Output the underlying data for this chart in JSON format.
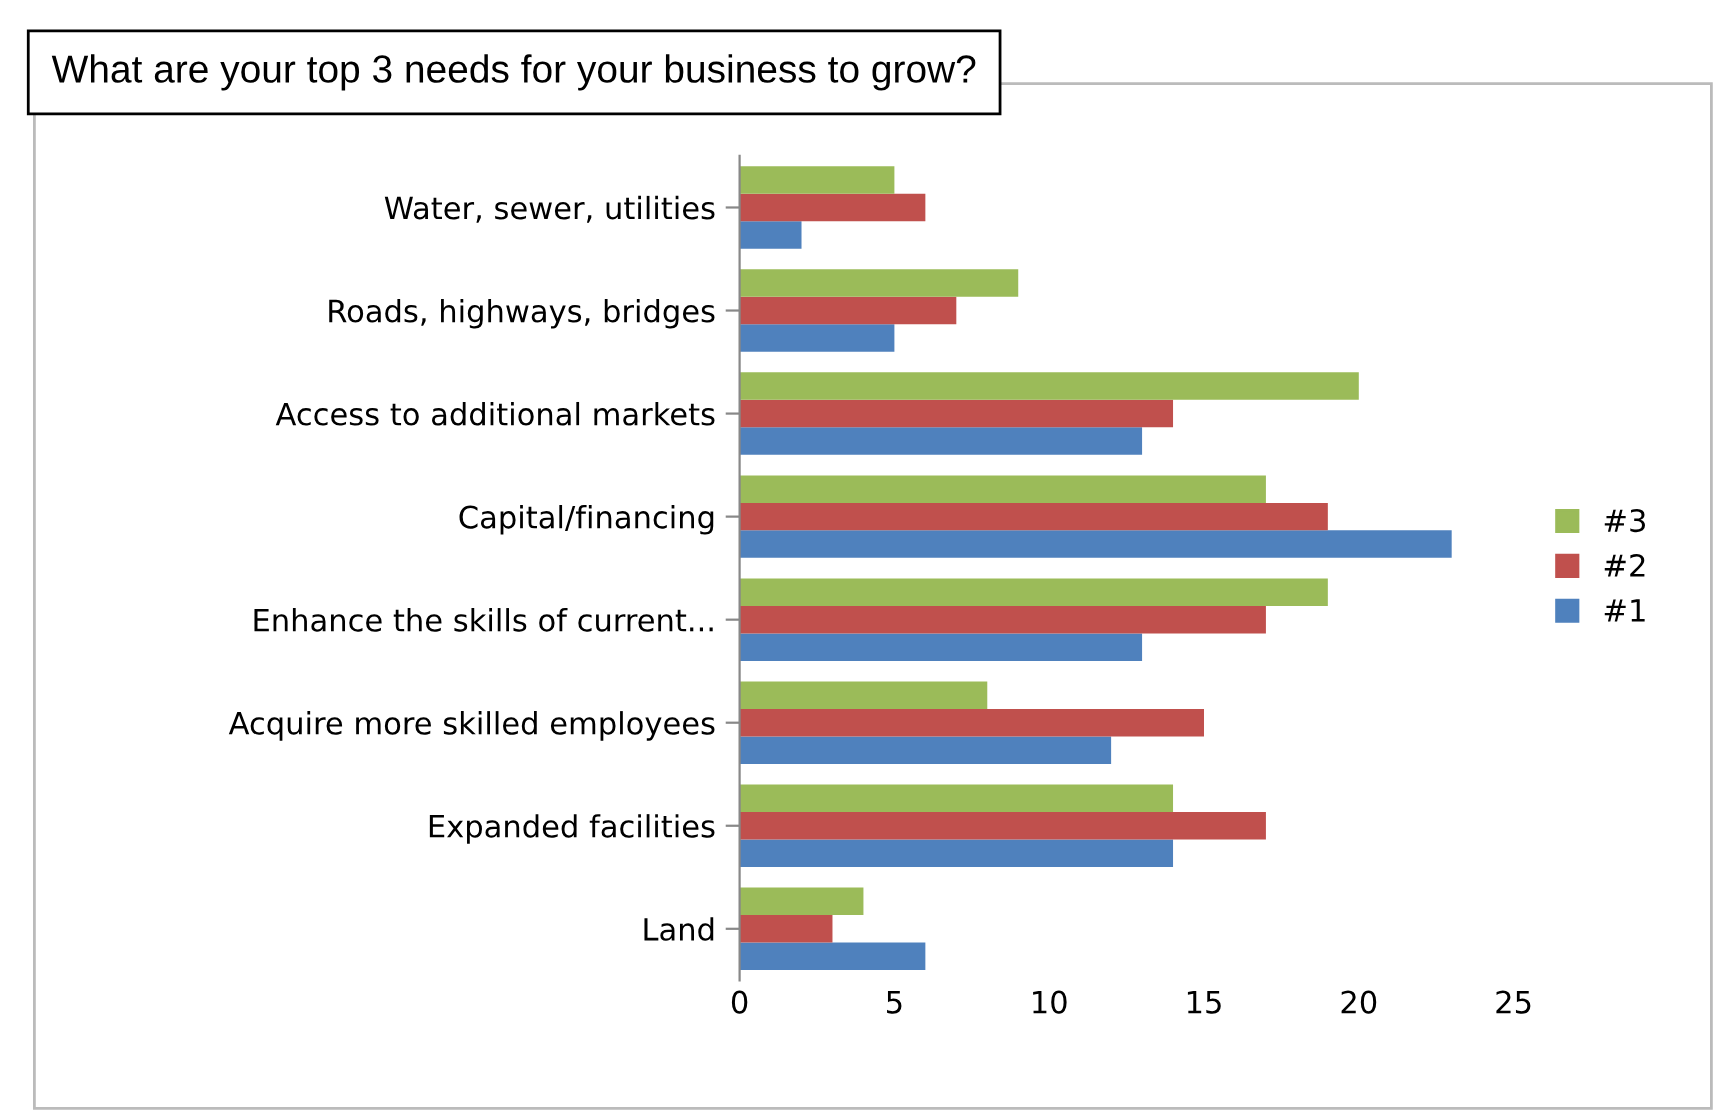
{
  "chart_data": {
    "type": "bar",
    "orientation": "horizontal",
    "title": "What are your top 3 needs for your business to grow?",
    "categories": [
      "Water, sewer, utilities",
      "Roads, highways, bridges",
      "Access to additional markets",
      "Capital/financing",
      "Enhance the skills of current...",
      "Acquire more skilled employees",
      "Expanded facilities",
      "Land"
    ],
    "series": [
      {
        "name": "#1",
        "color": "#4f81bd",
        "values": [
          2,
          5,
          13,
          23,
          13,
          12,
          14,
          6
        ]
      },
      {
        "name": "#2",
        "color": "#c0504d",
        "values": [
          6,
          7,
          14,
          19,
          17,
          15,
          17,
          3
        ]
      },
      {
        "name": "#3",
        "color": "#9bbb59",
        "values": [
          5,
          9,
          20,
          17,
          19,
          8,
          14,
          4
        ]
      }
    ],
    "xlim": [
      0,
      25
    ],
    "xticks": [
      0,
      5,
      10,
      15,
      20,
      25
    ],
    "grid": false,
    "legend": "right"
  }
}
